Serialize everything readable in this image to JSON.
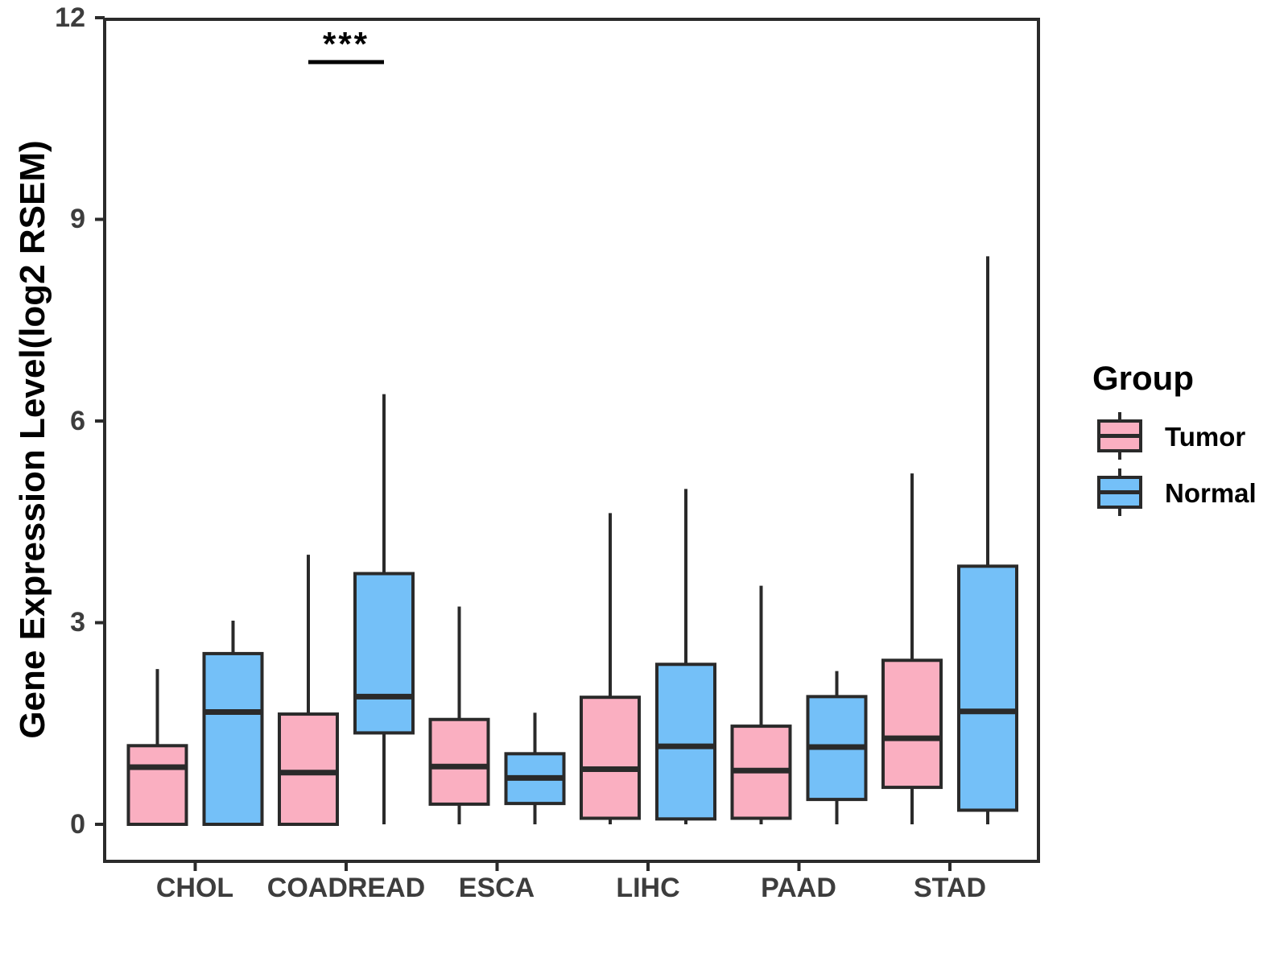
{
  "chart_data": {
    "type": "boxplot",
    "title": "",
    "xlabel": "",
    "ylabel": "Gene Expression Level(log2 RSEM)",
    "yticks": [
      0,
      3,
      6,
      9,
      12
    ],
    "ylim": [
      -0.56,
      12
    ],
    "grid": "off",
    "background": "#FFFFFF",
    "categories": [
      "CHOL",
      "COADREAD",
      "ESCA",
      "LIHC",
      "PAAD",
      "STAD"
    ],
    "groups": [
      {
        "name": "Tumor",
        "color": "#FAAFC1"
      },
      {
        "name": "Normal",
        "color": "#74C0F8"
      }
    ],
    "series": [
      {
        "name": "Tumor",
        "boxes": [
          {
            "category": "CHOL",
            "min": 0,
            "q1": 0,
            "median": 0.85,
            "q3": 1.17,
            "max": 2.31
          },
          {
            "category": "COADREAD",
            "min": 0,
            "q1": 0,
            "median": 0.77,
            "q3": 1.64,
            "max": 4.01
          },
          {
            "category": "ESCA",
            "min": 0,
            "q1": 0.3,
            "median": 0.86,
            "q3": 1.56,
            "max": 3.24
          },
          {
            "category": "LIHC",
            "min": 0,
            "q1": 0.09,
            "median": 0.82,
            "q3": 1.89,
            "max": 4.63
          },
          {
            "category": "PAAD",
            "min": 0,
            "q1": 0.09,
            "median": 0.8,
            "q3": 1.46,
            "max": 3.55
          },
          {
            "category": "STAD",
            "min": 0,
            "q1": 0.55,
            "median": 1.28,
            "q3": 2.44,
            "max": 5.22
          }
        ]
      },
      {
        "name": "Normal",
        "boxes": [
          {
            "category": "CHOL",
            "min": 0,
            "q1": 0,
            "median": 1.67,
            "q3": 2.54,
            "max": 3.03
          },
          {
            "category": "COADREAD",
            "min": 0,
            "q1": 1.36,
            "median": 1.9,
            "q3": 3.73,
            "max": 6.4
          },
          {
            "category": "ESCA",
            "min": 0,
            "q1": 0.31,
            "median": 0.69,
            "q3": 1.05,
            "max": 1.66
          },
          {
            "category": "LIHC",
            "min": 0,
            "q1": 0.08,
            "median": 1.16,
            "q3": 2.38,
            "max": 4.99
          },
          {
            "category": "PAAD",
            "min": 0,
            "q1": 0.37,
            "median": 1.15,
            "q3": 1.9,
            "max": 2.28
          },
          {
            "category": "STAD",
            "min": 0,
            "q1": 0.21,
            "median": 1.68,
            "q3": 3.84,
            "max": 8.45
          }
        ]
      }
    ],
    "annotation": {
      "text": "***",
      "category": "COADREAD",
      "line_y": 11.34
    },
    "legend": {
      "title": "Group",
      "position": "right"
    },
    "style": {
      "box_border_color": "#2A2A2A",
      "axis_color": "#2B2B2B",
      "tick_label_color": "#3D3D3D",
      "annotation_color": "#000000"
    }
  }
}
